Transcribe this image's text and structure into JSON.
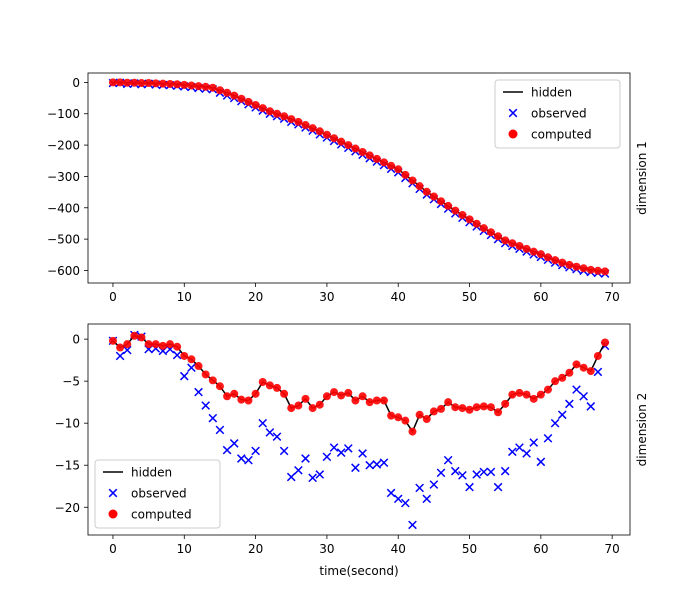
{
  "chart_data": [
    {
      "type": "scatter",
      "title": "",
      "xlabel": "",
      "ylabel": "dimension 1",
      "xlim": [
        -3.5,
        72.5
      ],
      "ylim": [
        -640,
        30
      ],
      "xticks": [
        0,
        10,
        20,
        30,
        40,
        50,
        60,
        70
      ],
      "yticks": [
        0,
        -100,
        -200,
        -300,
        -400,
        -500,
        -600
      ],
      "grid": false,
      "legend_position": "upper right",
      "x": [
        0,
        1,
        2,
        3,
        4,
        5,
        6,
        7,
        8,
        9,
        10,
        11,
        12,
        13,
        14,
        15,
        16,
        17,
        18,
        19,
        20,
        21,
        22,
        23,
        24,
        25,
        26,
        27,
        28,
        29,
        30,
        31,
        32,
        33,
        34,
        35,
        36,
        37,
        38,
        39,
        40,
        41,
        42,
        43,
        44,
        45,
        46,
        47,
        48,
        49,
        50,
        51,
        52,
        53,
        54,
        55,
        56,
        57,
        58,
        59,
        60,
        61,
        62,
        63,
        64,
        65,
        66,
        67,
        68,
        69
      ],
      "series": [
        {
          "name": "hidden",
          "style": "line",
          "color": "#000000",
          "values": [
            0,
            0,
            -1,
            -1,
            -2,
            -2,
            -3,
            -4,
            -5,
            -6,
            -8,
            -10,
            -12,
            -14,
            -17,
            -25,
            -33,
            -42,
            -52,
            -62,
            -72,
            -82,
            -92,
            -100,
            -108,
            -117,
            -126,
            -136,
            -146,
            -156,
            -167,
            -178,
            -189,
            -200,
            -211,
            -222,
            -233,
            -244,
            -255,
            -266,
            -277,
            -295,
            -313,
            -331,
            -349,
            -364,
            -379,
            -394,
            -409,
            -423,
            -437,
            -451,
            -465,
            -478,
            -491,
            -504,
            -513,
            -522,
            -531,
            -540,
            -548,
            -558,
            -567,
            -575,
            -582,
            -588,
            -593,
            -598,
            -601,
            -603
          ]
        },
        {
          "name": "observed",
          "style": "x",
          "color": "#0000ff",
          "values": [
            -2,
            -1,
            -5,
            -3,
            -6,
            -4,
            -7,
            -8,
            -9,
            -11,
            -13,
            -15,
            -18,
            -20,
            -22,
            -33,
            -42,
            -50,
            -60,
            -70,
            -80,
            -90,
            -100,
            -108,
            -116,
            -126,
            -134,
            -144,
            -154,
            -166,
            -176,
            -187,
            -198,
            -209,
            -220,
            -231,
            -242,
            -253,
            -264,
            -276,
            -287,
            -305,
            -322,
            -340,
            -358,
            -373,
            -388,
            -403,
            -418,
            -432,
            -446,
            -460,
            -474,
            -487,
            -500,
            -513,
            -522,
            -531,
            -540,
            -549,
            -557,
            -566,
            -575,
            -583,
            -590,
            -596,
            -601,
            -605,
            -608,
            -610
          ]
        },
        {
          "name": "computed",
          "style": "dot",
          "color": "#ff0000",
          "values": [
            0,
            0,
            -1,
            -1,
            -2,
            -2,
            -3,
            -4,
            -5,
            -6,
            -8,
            -10,
            -12,
            -14,
            -17,
            -25,
            -33,
            -42,
            -52,
            -62,
            -72,
            -82,
            -92,
            -100,
            -108,
            -117,
            -126,
            -136,
            -146,
            -156,
            -167,
            -178,
            -189,
            -200,
            -211,
            -222,
            -233,
            -244,
            -255,
            -266,
            -277,
            -295,
            -313,
            -331,
            -349,
            -364,
            -379,
            -394,
            -409,
            -423,
            -437,
            -451,
            -465,
            -478,
            -491,
            -504,
            -513,
            -522,
            -531,
            -540,
            -548,
            -558,
            -567,
            -575,
            -582,
            -588,
            -593,
            -598,
            -601,
            -603
          ]
        }
      ]
    },
    {
      "type": "scatter",
      "title": "",
      "xlabel": "time(second)",
      "ylabel": "dimension 2",
      "xlim": [
        -3.5,
        72.5
      ],
      "ylim": [
        -23.3,
        1.8
      ],
      "xticks": [
        0,
        10,
        20,
        30,
        40,
        50,
        60,
        70
      ],
      "yticks": [
        0,
        -5,
        -10,
        -15,
        -20
      ],
      "grid": false,
      "legend_position": "lower left",
      "x": [
        0,
        1,
        2,
        3,
        4,
        5,
        6,
        7,
        8,
        9,
        10,
        11,
        12,
        13,
        14,
        15,
        16,
        17,
        18,
        19,
        20,
        21,
        22,
        23,
        24,
        25,
        26,
        27,
        28,
        29,
        30,
        31,
        32,
        33,
        34,
        35,
        36,
        37,
        38,
        39,
        40,
        41,
        42,
        43,
        44,
        45,
        46,
        47,
        48,
        49,
        50,
        51,
        52,
        53,
        54,
        55,
        56,
        57,
        58,
        59,
        60,
        61,
        62,
        63,
        64,
        65,
        66,
        67,
        68,
        69
      ],
      "series": [
        {
          "name": "hidden",
          "style": "line",
          "color": "#000000",
          "values": [
            -0.2,
            -1.0,
            -0.6,
            0.4,
            0.2,
            -0.6,
            -0.6,
            -0.8,
            -0.6,
            -0.9,
            -2.0,
            -2.4,
            -3.2,
            -4.2,
            -4.9,
            -5.6,
            -6.8,
            -6.5,
            -7.2,
            -7.3,
            -6.5,
            -5.1,
            -5.5,
            -5.8,
            -6.5,
            -8.2,
            -7.9,
            -7.1,
            -8.2,
            -7.8,
            -6.8,
            -6.3,
            -6.7,
            -6.4,
            -7.3,
            -6.8,
            -7.5,
            -7.3,
            -7.3,
            -9.1,
            -9.3,
            -9.7,
            -11.0,
            -9.0,
            -9.5,
            -8.6,
            -8.3,
            -7.5,
            -8.1,
            -8.2,
            -8.4,
            -8.1,
            -8.0,
            -8.1,
            -8.7,
            -7.7,
            -6.6,
            -6.4,
            -6.6,
            -7.1,
            -6.6,
            -6.0,
            -5.0,
            -4.6,
            -4.0,
            -3.0,
            -3.4,
            -3.8,
            -2.0,
            -0.4
          ]
        },
        {
          "name": "observed",
          "style": "x",
          "color": "#0000ff",
          "values": [
            -0.2,
            -2.0,
            -1.3,
            0.5,
            0.3,
            -1.2,
            -1.1,
            -1.4,
            -1.2,
            -1.9,
            -4.4,
            -3.4,
            -6.3,
            -7.9,
            -9.4,
            -10.8,
            -13.2,
            -12.4,
            -14.2,
            -14.4,
            -13.3,
            -10.0,
            -11.1,
            -11.6,
            -13.3,
            -16.4,
            -15.6,
            -14.2,
            -16.5,
            -16.1,
            -14.0,
            -12.9,
            -13.5,
            -13.0,
            -15.3,
            -13.6,
            -15.0,
            -14.9,
            -14.7,
            -18.3,
            -19.0,
            -19.5,
            -22.1,
            -17.7,
            -19.0,
            -17.3,
            -15.9,
            -14.4,
            -15.7,
            -16.2,
            -17.6,
            -16.1,
            -15.8,
            -15.8,
            -17.6,
            -15.7,
            -13.4,
            -12.9,
            -13.6,
            -12.3,
            -14.6,
            -11.8,
            -10.0,
            -9.0,
            -7.7,
            -6.0,
            -6.8,
            -8.0,
            -3.9,
            -0.8
          ]
        },
        {
          "name": "computed",
          "style": "dot",
          "color": "#ff0000",
          "values": [
            -0.2,
            -1.0,
            -0.6,
            0.4,
            0.2,
            -0.6,
            -0.6,
            -0.8,
            -0.6,
            -0.9,
            -2.0,
            -2.4,
            -3.2,
            -4.2,
            -4.9,
            -5.6,
            -6.8,
            -6.5,
            -7.2,
            -7.3,
            -6.5,
            -5.1,
            -5.5,
            -5.8,
            -6.5,
            -8.2,
            -7.9,
            -7.1,
            -8.2,
            -7.8,
            -6.8,
            -6.3,
            -6.7,
            -6.4,
            -7.3,
            -6.8,
            -7.5,
            -7.3,
            -7.3,
            -9.1,
            -9.3,
            -9.7,
            -11.0,
            -9.0,
            -9.5,
            -8.6,
            -8.3,
            -7.5,
            -8.1,
            -8.2,
            -8.4,
            -8.1,
            -8.0,
            -8.1,
            -8.7,
            -7.7,
            -6.6,
            -6.4,
            -6.6,
            -7.1,
            -6.6,
            -6.0,
            -5.0,
            -4.6,
            -4.0,
            -3.0,
            -3.4,
            -3.8,
            -2.0,
            -0.4
          ]
        }
      ]
    }
  ]
}
